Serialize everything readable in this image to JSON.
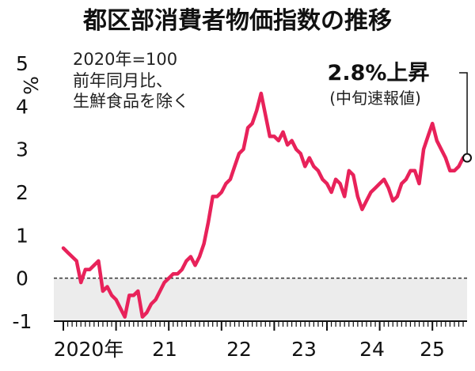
{
  "chart_data": {
    "type": "line",
    "title": "都区部消費者物価指数の推移",
    "notes": [
      "2020年=100",
      "前年同月比、",
      "生鮮食品を除く"
    ],
    "ylabel_unit": "%",
    "ylim": [
      -1,
      5
    ],
    "yticks": [
      "5",
      "4",
      "3",
      "2",
      "1",
      "0",
      "-1"
    ],
    "xticks": [
      "2020年",
      "21",
      "22",
      "23",
      "24",
      "25"
    ],
    "series": [
      {
        "values": [
          0.7,
          0.6,
          0.5,
          0.4,
          -0.1,
          0.2,
          0.2,
          0.3,
          0.4,
          -0.3,
          -0.2,
          -0.4,
          -0.5,
          -0.7,
          -0.9,
          -0.4,
          -0.4,
          -0.3,
          -0.9,
          -0.8,
          -0.6,
          -0.5,
          -0.3,
          -0.1,
          0.0,
          0.1,
          0.1,
          0.2,
          0.4,
          0.5,
          0.3,
          0.5,
          0.8,
          1.3,
          1.9,
          1.9,
          2.0,
          2.2,
          2.3,
          2.6,
          2.9,
          3.0,
          3.5,
          3.6,
          3.9,
          4.3,
          3.8,
          3.3,
          3.3,
          3.2,
          3.4,
          3.1,
          3.2,
          3.0,
          2.9,
          2.6,
          2.8,
          2.6,
          2.5,
          2.3,
          2.2,
          2.0,
          2.3,
          2.2,
          1.9,
          2.5,
          2.4,
          1.9,
          1.6,
          1.8,
          2.0,
          2.1,
          2.2,
          2.3,
          2.1,
          1.8,
          1.9,
          2.2,
          2.3,
          2.5,
          2.5,
          2.2,
          3.0,
          3.3,
          3.6,
          3.2,
          3.0,
          2.8,
          2.5,
          2.5,
          2.6,
          2.8
        ]
      }
    ],
    "annotation": {
      "title": "2.8%上昇",
      "subtitle": "(中旬速報値)",
      "value": 2.8
    },
    "colors": {
      "line": "#e8225a",
      "negative_band": "#ececec",
      "zero_line": "#333333",
      "axis": "#111111"
    },
    "grid": false
  }
}
